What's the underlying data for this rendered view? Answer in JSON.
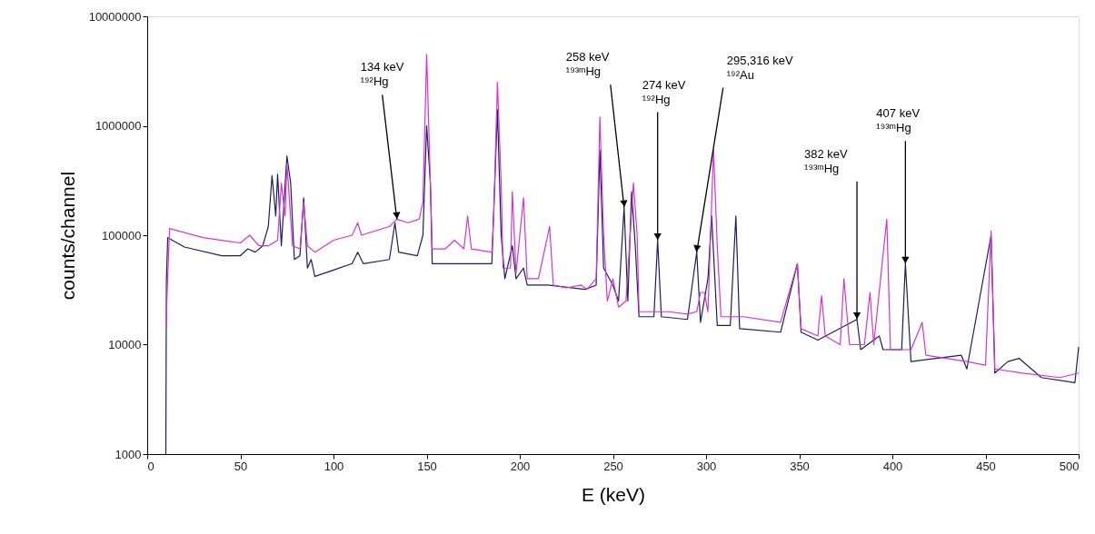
{
  "chart_data": {
    "type": "line",
    "xlabel": "E (keV)",
    "ylabel": "counts/channel",
    "xlim": [
      0,
      500
    ],
    "xticks": [
      0,
      50,
      100,
      150,
      200,
      250,
      300,
      350,
      400,
      450,
      500
    ],
    "ylim": [
      1000,
      10000000
    ],
    "yticks": [
      1000,
      10000,
      100000,
      1000000,
      10000000
    ],
    "log": "y",
    "grid": false,
    "marker": "none",
    "line_style": "solid",
    "series": [
      {
        "color": "#1c1c66",
        "x": [
          10,
          10.3,
          11,
          20,
          40,
          50,
          54,
          58,
          62,
          65,
          67,
          69,
          70,
          72,
          75,
          77,
          79,
          82,
          84,
          86,
          88,
          90,
          100,
          110,
          113,
          116,
          130,
          133,
          135,
          145,
          148,
          150,
          152,
          153,
          160,
          170,
          185,
          188,
          190,
          192,
          196,
          198,
          202,
          204,
          215,
          235,
          241,
          243,
          245,
          250,
          253,
          256,
          258,
          260,
          262,
          264,
          272,
          274,
          276,
          290,
          295,
          297,
          301,
          303,
          306,
          313,
          316,
          318,
          340,
          349,
          351,
          360,
          381,
          383,
          393,
          395,
          405,
          407,
          410,
          437,
          440,
          453,
          455,
          462,
          468,
          480,
          498,
          500
        ],
        "values": [
          1000,
          38000,
          95000,
          78000,
          65000,
          65000,
          75000,
          70000,
          80000,
          120000,
          350000,
          150000,
          360000,
          80000,
          530000,
          300000,
          60000,
          65000,
          220000,
          50000,
          60000,
          42000,
          48000,
          55000,
          70000,
          55000,
          60000,
          130000,
          70000,
          65000,
          100000,
          1000000,
          300000,
          55000,
          55000,
          55000,
          55000,
          1400000,
          100000,
          40000,
          80000,
          40000,
          50000,
          35000,
          35000,
          32000,
          35000,
          600000,
          50000,
          35000,
          25000,
          180000,
          25000,
          250000,
          80000,
          18000,
          18000,
          90000,
          18000,
          17000,
          70000,
          16000,
          40000,
          150000,
          15000,
          15000,
          150000,
          14000,
          13000,
          55000,
          13000,
          11000,
          17000,
          9000,
          12000,
          9000,
          9000,
          55000,
          7000,
          8000,
          6000,
          100000,
          5500,
          7000,
          7500,
          5000,
          4500,
          9500
        ]
      },
      {
        "color": "#d633d6",
        "x": [
          10,
          12,
          30,
          50,
          55,
          60,
          65,
          70,
          72,
          74,
          75,
          78,
          82,
          84,
          86,
          90,
          100,
          110,
          113,
          115,
          130,
          134,
          140,
          146,
          148,
          150,
          152,
          153,
          160,
          165,
          170,
          172,
          174,
          185,
          186,
          188,
          190,
          191,
          195,
          196,
          198,
          202,
          204,
          210,
          216,
          218,
          225,
          233,
          236,
          241,
          243,
          245,
          247,
          250,
          253,
          257,
          261,
          263,
          264,
          280,
          290,
          295,
          297,
          299,
          301,
          304,
          306,
          308,
          320,
          340,
          349,
          351,
          360,
          362,
          364,
          372,
          374,
          377,
          385,
          388,
          390,
          397,
          399,
          410,
          416,
          418,
          440,
          450,
          453,
          455,
          470,
          490,
          500
        ],
        "values": [
          14500,
          115000,
          95000,
          85000,
          100000,
          80000,
          80000,
          90000,
          300000,
          150000,
          450000,
          80000,
          75000,
          200000,
          80000,
          70000,
          90000,
          100000,
          130000,
          100000,
          120000,
          140000,
          130000,
          140000,
          200000,
          4500000,
          300000,
          75000,
          75000,
          90000,
          75000,
          150000,
          75000,
          70000,
          150000,
          2500000,
          300000,
          50000,
          50000,
          250000,
          45000,
          220000,
          40000,
          40000,
          120000,
          35000,
          33000,
          35000,
          32000,
          40000,
          1200000,
          100000,
          25000,
          40000,
          22000,
          25000,
          300000,
          100000,
          20000,
          20000,
          19000,
          20000,
          30000,
          30000,
          20000,
          600000,
          80000,
          18000,
          18000,
          16000,
          55000,
          14000,
          12000,
          28000,
          12000,
          10000,
          40000,
          10000,
          10000,
          30000,
          10000,
          140000,
          9000,
          9000,
          16000,
          8000,
          7000,
          6500,
          110000,
          6000,
          5500,
          5000,
          5500
        ]
      }
    ],
    "annotations": [
      {
        "text": "134 keV\n¹⁹²Hg",
        "x": 134,
        "y": 140000
      },
      {
        "text": "258 keV\n¹⁹³ᵐHg",
        "x": 256,
        "y": 180000
      },
      {
        "text": "274 keV\n¹⁹²Hg",
        "x": 274,
        "y": 90000
      },
      {
        "text": "295,316 keV\n¹⁹²Au",
        "x": 295,
        "y": 70000
      },
      {
        "text": "382 keV\n¹⁹³ᵐHg",
        "x": 381,
        "y": 17000
      },
      {
        "text": "407 keV\n¹⁹³ᵐHg",
        "x": 407,
        "y": 55000
      }
    ]
  }
}
